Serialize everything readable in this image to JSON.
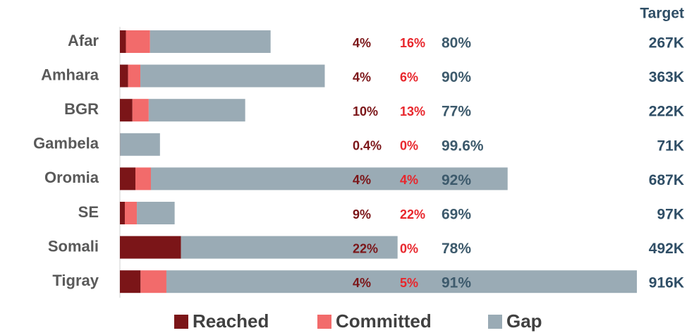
{
  "chart_data": {
    "type": "bar",
    "categories": [
      "Afar",
      "Amhara",
      "BGR",
      "Gambela",
      "Oromia",
      "SE",
      "Somali",
      "Tigray"
    ],
    "series": [
      {
        "name": "Reached",
        "color": "#7b1518",
        "values": [
          4,
          4,
          10,
          0.4,
          4,
          9,
          22,
          4
        ],
        "value_labels": [
          "4%",
          "4%",
          "10%",
          "0.4%",
          "4%",
          "9%",
          "22%",
          "4%"
        ]
      },
      {
        "name": "Committed",
        "color": "#f26b6b",
        "values": [
          16,
          6,
          13,
          0,
          4,
          22,
          0,
          5
        ],
        "value_labels": [
          "16%",
          "6%",
          "13%",
          "0%",
          "4%",
          "22%",
          "0%",
          "5%"
        ]
      },
      {
        "name": "Gap",
        "color": "#9aabb5",
        "values": [
          80,
          90,
          77,
          99.6,
          92,
          69,
          78,
          91
        ],
        "value_labels": [
          "80%",
          "90%",
          "77%",
          "99.6%",
          "92%",
          "69%",
          "78%",
          "91%"
        ]
      }
    ],
    "target": {
      "title": "Target",
      "values": [
        267000,
        363000,
        222000,
        71000,
        687000,
        97000,
        492000,
        916000
      ],
      "value_labels": [
        "267K",
        "363K",
        "222K",
        "71K",
        "687K",
        "97K",
        "492K",
        "916K"
      ]
    },
    "label_colors": [
      "#7b1518",
      "#e8262c",
      "#3d5a6c"
    ],
    "target_color": "#2f4e66"
  }
}
